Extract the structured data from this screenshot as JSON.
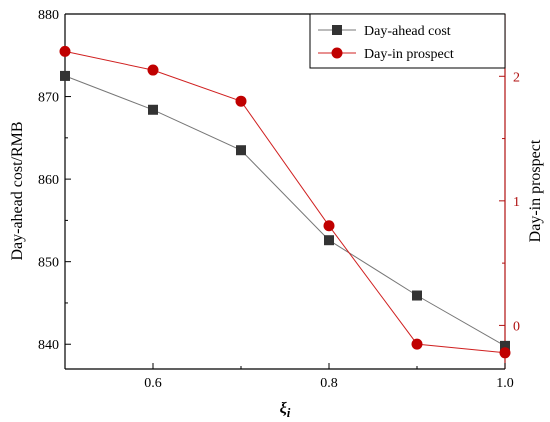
{
  "chart_data": {
    "type": "line",
    "x": [
      0.5,
      0.6,
      0.7,
      0.8,
      0.9,
      1.0
    ],
    "xlabel_base": "ξ",
    "xlabel_sub": "i",
    "ylabel": "Day-ahead cost/RMB",
    "y2label": "Day-in prospect",
    "xlim": [
      0.5,
      1.0
    ],
    "ylim": [
      837,
      880
    ],
    "y2lim": [
      -0.35,
      2.5
    ],
    "x_ticks": [
      0.6,
      0.8,
      1.0
    ],
    "x_tick_labels": [
      "0.6",
      "0.8",
      "1.0"
    ],
    "y_ticks": [
      840,
      850,
      860,
      870,
      880
    ],
    "y_tick_labels": [
      "840",
      "850",
      "860",
      "870",
      "880"
    ],
    "y2_ticks": [
      0,
      1,
      2
    ],
    "y2_tick_labels": [
      "0",
      "1",
      "2"
    ],
    "grid": false,
    "legend_position": "top-right",
    "series": [
      {
        "name": "Day-ahead cost",
        "axis": "left",
        "marker": "square",
        "color": "#333333",
        "line_color": "#777777",
        "values": [
          872.5,
          868.4,
          863.5,
          852.6,
          845.9,
          839.8
        ]
      },
      {
        "name": "Day-in prospect",
        "axis": "right",
        "marker": "circle",
        "color": "#c00000",
        "line_color": "#d02020",
        "values": [
          2.2,
          2.05,
          1.8,
          0.8,
          -0.15,
          -0.22
        ]
      }
    ],
    "right_axis_color": "#b01010"
  }
}
